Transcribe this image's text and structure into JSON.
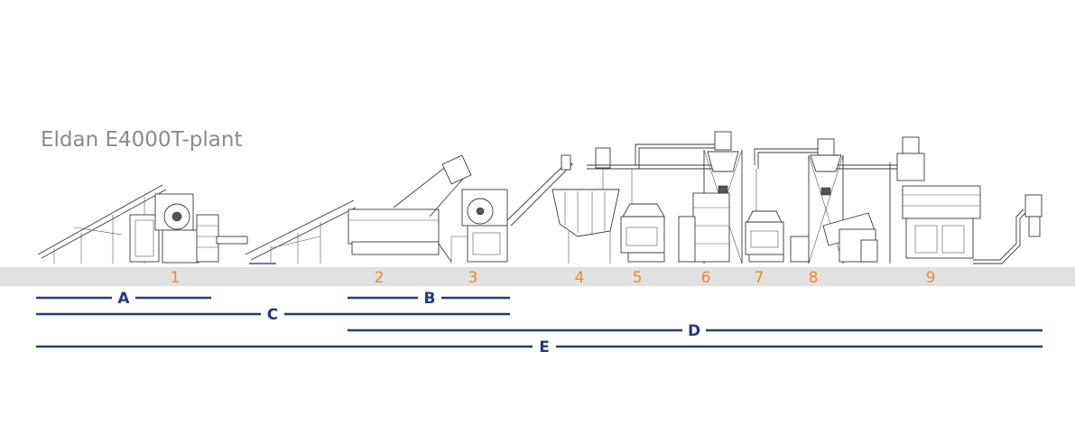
{
  "title": "Eldan E4000T-plant",
  "colors": {
    "floor": "#e1e1e1",
    "station_label": "#f08a24",
    "section_line": "#243a7c",
    "title": "#8a8a8a"
  },
  "stations": [
    {
      "id": "1",
      "label": "1",
      "machine": "shear-with-infeed-conveyor"
    },
    {
      "id": "2",
      "label": "2",
      "machine": "infeed-conveyor"
    },
    {
      "id": "3",
      "label": "3",
      "machine": "rasper"
    },
    {
      "id": "4",
      "label": "4",
      "machine": "magnetic-separator"
    },
    {
      "id": "5",
      "label": "5",
      "machine": "granulator"
    },
    {
      "id": "6",
      "label": "6",
      "machine": "cyclone-tower"
    },
    {
      "id": "7",
      "label": "7",
      "machine": "granulator"
    },
    {
      "id": "8",
      "label": "8",
      "machine": "cyclone-tower"
    },
    {
      "id": "9",
      "label": "9",
      "machine": "separation-table"
    }
  ],
  "sections": [
    {
      "id": "A",
      "label": "A"
    },
    {
      "id": "B",
      "label": "B"
    },
    {
      "id": "C",
      "label": "C"
    },
    {
      "id": "D",
      "label": "D"
    },
    {
      "id": "E",
      "label": "E"
    }
  ]
}
